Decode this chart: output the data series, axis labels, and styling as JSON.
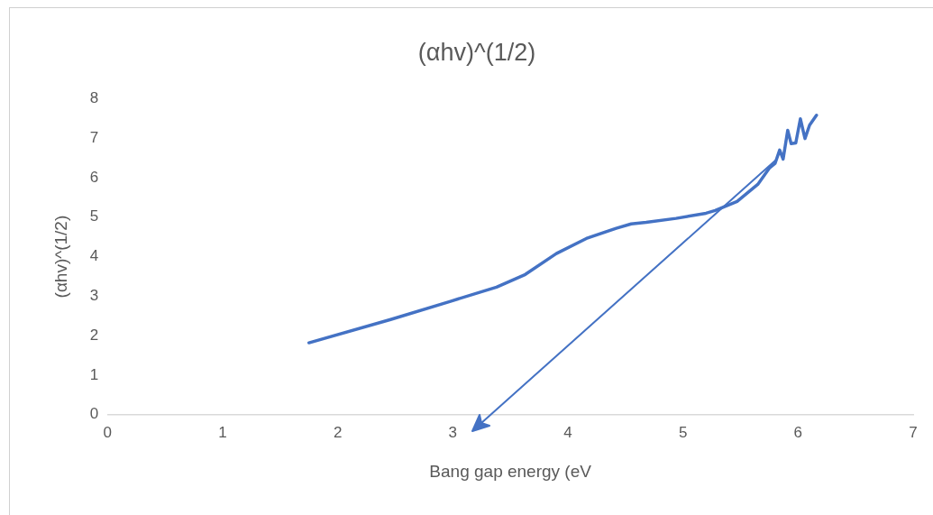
{
  "chart_data": {
    "type": "line",
    "title": "(αhv)^(1/2)",
    "xlabel": "Bang gap energy (eV",
    "ylabel": "(αhv)^(1/2)",
    "x": [
      1.75,
      2.46,
      2.98,
      3.38,
      3.63,
      3.9,
      4.16,
      4.42,
      4.55,
      4.68,
      4.94,
      5.2,
      5.28,
      5.47,
      5.65,
      5.75,
      5.8,
      5.84,
      5.87,
      5.91,
      5.94,
      5.98,
      6.02,
      6.06,
      6.1,
      6.16
    ],
    "series": [
      {
        "color": "#4472c4",
        "values": [
          1.82,
          2.41,
          2.87,
          3.23,
          3.55,
          4.08,
          4.46,
          4.72,
          4.83,
          4.87,
          4.97,
          5.1,
          5.17,
          5.4,
          5.83,
          6.24,
          6.36,
          6.7,
          6.47,
          7.2,
          6.86,
          6.88,
          7.49,
          6.99,
          7.33,
          7.58
        ]
      }
    ],
    "xlim": [
      0,
      7
    ],
    "xticks": [
      0,
      1,
      2,
      3,
      4,
      5,
      6,
      7
    ],
    "ylim": [
      0,
      8
    ],
    "yticks": [
      0,
      1,
      2,
      3,
      4,
      5,
      6,
      7,
      8
    ],
    "grid": false,
    "legend": false,
    "marker": "none",
    "line_style": "solid"
  }
}
